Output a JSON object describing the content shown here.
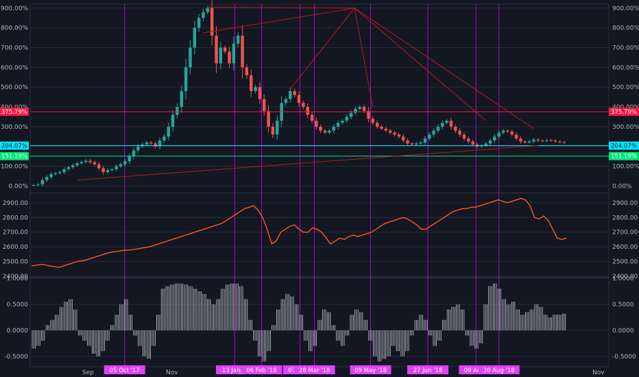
{
  "colors": {
    "background": "#131722",
    "grid": "#262b38",
    "candle_up": "#26a69a",
    "candle_down": "#ef5350",
    "trend": "#b71c1c",
    "vline": "#d500f9",
    "vlabel_bg": "#e040fb",
    "level_red": "#ff1744",
    "level_cyan": "#00e5ff",
    "level_green": "#00e676",
    "index_line": "#ff5722",
    "osc": "#d1d4dc",
    "axis_text": "#b2b5be"
  },
  "chart_data": [
    {
      "type": "candlestick",
      "pane": "top",
      "yunit": "%",
      "ylim": [
        -30,
        920
      ],
      "yticks": [
        "900.00%",
        "800.00%",
        "700.00%",
        "600.00%",
        "500.00%",
        "400.00%",
        "300.00%",
        "200.00%",
        "100.00%",
        "0.00%"
      ],
      "ytick_values": [
        900,
        800,
        700,
        600,
        500,
        400,
        300,
        200,
        100,
        0
      ],
      "series": [
        {
          "values": [
            5,
            8,
            30,
            45,
            60,
            65,
            70,
            85,
            95,
            105,
            115,
            122,
            128,
            120,
            110,
            90,
            70,
            80,
            85,
            100,
            110,
            125,
            150,
            180,
            200,
            210,
            220,
            215,
            200,
            230,
            250,
            300,
            360,
            400,
            480,
            600,
            700,
            800,
            850,
            880,
            900,
            760,
            620,
            700,
            680,
            620,
            720,
            760,
            600,
            560,
            480,
            500,
            440,
            380,
            300,
            260,
            330,
            420,
            440,
            480,
            460,
            420,
            400,
            360,
            330,
            300,
            280,
            270,
            280,
            300,
            320,
            330,
            350,
            370,
            390,
            400,
            380,
            340,
            320,
            300,
            290,
            280,
            270,
            260,
            250,
            230,
            215,
            210,
            215,
            220,
            240,
            260,
            280,
            300,
            320,
            330,
            300,
            280,
            260,
            240,
            225,
            210,
            200,
            205,
            215,
            230,
            250,
            270,
            280,
            275,
            260,
            240,
            225,
            220,
            225,
            235,
            230,
            228,
            232,
            230,
            225,
            222,
            220
          ]
        }
      ],
      "levels": [
        {
          "value": 375.79,
          "label": "375.79%"
        },
        {
          "value": 204.07,
          "label": "204.07%"
        },
        {
          "value": 151.19,
          "label": "151.19%"
        }
      ]
    },
    {
      "type": "line",
      "pane": "middle",
      "ylim": [
        2400,
        2960
      ],
      "yticks": [
        "2900.00",
        "2800.00",
        "2700.00",
        "2600.00",
        "2500.00",
        "2400.00"
      ],
      "ytick_values": [
        2900,
        2800,
        2700,
        2600,
        2500,
        2400
      ],
      "series": [
        {
          "values": [
            2470,
            2475,
            2480,
            2478,
            2470,
            2465,
            2460,
            2470,
            2480,
            2490,
            2500,
            2505,
            2510,
            2520,
            2530,
            2540,
            2550,
            2560,
            2565,
            2570,
            2575,
            2578,
            2580,
            2585,
            2590,
            2595,
            2600,
            2610,
            2620,
            2630,
            2640,
            2650,
            2660,
            2670,
            2680,
            2690,
            2700,
            2710,
            2720,
            2730,
            2740,
            2750,
            2760,
            2780,
            2800,
            2820,
            2840,
            2860,
            2870,
            2880,
            2850,
            2800,
            2720,
            2620,
            2640,
            2700,
            2720,
            2740,
            2750,
            2720,
            2700,
            2700,
            2730,
            2720,
            2700,
            2660,
            2620,
            2640,
            2660,
            2650,
            2670,
            2680,
            2670,
            2680,
            2690,
            2700,
            2720,
            2740,
            2760,
            2770,
            2780,
            2790,
            2800,
            2790,
            2770,
            2750,
            2720,
            2720,
            2740,
            2760,
            2780,
            2800,
            2820,
            2840,
            2850,
            2860,
            2860,
            2870,
            2870,
            2880,
            2890,
            2900,
            2910,
            2920,
            2910,
            2900,
            2910,
            2920,
            2930,
            2920,
            2880,
            2800,
            2790,
            2810,
            2780,
            2720,
            2660,
            2650,
            2660
          ]
        }
      ]
    },
    {
      "type": "bar",
      "pane": "bottom",
      "ylim": [
        -0.7,
        1.0
      ],
      "yticks": [
        "1.0000",
        "0.5000",
        "0.0000",
        "-0.5000"
      ],
      "ytick_values": [
        1.0,
        0.5,
        0.0,
        -0.5
      ],
      "series": [
        {
          "values": [
            -0.35,
            -0.3,
            -0.2,
            0.1,
            0.2,
            0.3,
            0.45,
            0.55,
            0.6,
            0.4,
            -0.1,
            -0.2,
            -0.3,
            -0.45,
            -0.5,
            -0.4,
            -0.2,
            0.1,
            0.3,
            0.5,
            0.6,
            0.3,
            -0.1,
            -0.3,
            -0.5,
            -0.55,
            -0.3,
            0.3,
            0.8,
            0.85,
            0.88,
            0.9,
            0.9,
            0.88,
            0.85,
            0.8,
            0.75,
            0.7,
            0.6,
            0.5,
            0.6,
            0.8,
            0.88,
            0.9,
            0.9,
            0.85,
            0.6,
            0.2,
            -0.2,
            -0.5,
            -0.6,
            -0.4,
            0.1,
            0.4,
            0.6,
            0.7,
            0.65,
            0.5,
            0.3,
            -0.2,
            -0.4,
            -0.3,
            0.2,
            0.4,
            0.35,
            0.1,
            -0.2,
            -0.3,
            -0.1,
            0.3,
            0.4,
            0.35,
            0.2,
            -0.2,
            -0.5,
            -0.6,
            -0.55,
            -0.5,
            -0.3,
            -0.4,
            -0.5,
            -0.4,
            -0.1,
            0.2,
            0.3,
            0.2,
            -0.1,
            -0.3,
            -0.2,
            0.2,
            0.4,
            0.45,
            0.5,
            0.4,
            -0.1,
            -0.3,
            -0.35,
            -0.25,
            0.5,
            0.85,
            0.9,
            0.8,
            0.6,
            0.5,
            0.55,
            0.4,
            0.3,
            0.35,
            0.4,
            0.5,
            0.45,
            0.3,
            0.25,
            0.3,
            0.3,
            0.32
          ]
        }
      ]
    }
  ],
  "xaxis_labels": [
    {
      "text": "Sep",
      "pos": 0.1
    },
    {
      "text": "Nov",
      "pos": 0.245
    },
    {
      "text": "2",
      "pos": 0.363
    },
    {
      "text": "Nov",
      "pos": 0.982
    }
  ],
  "vertical_markers": [
    "05 Oct '17",
    "13 Jan '1",
    "06 Feb '18",
    "07 Mar '",
    "28 Mar '18",
    "09 May '18",
    "27 Jun '18",
    "09 Aug '",
    "30 Aug '18"
  ]
}
